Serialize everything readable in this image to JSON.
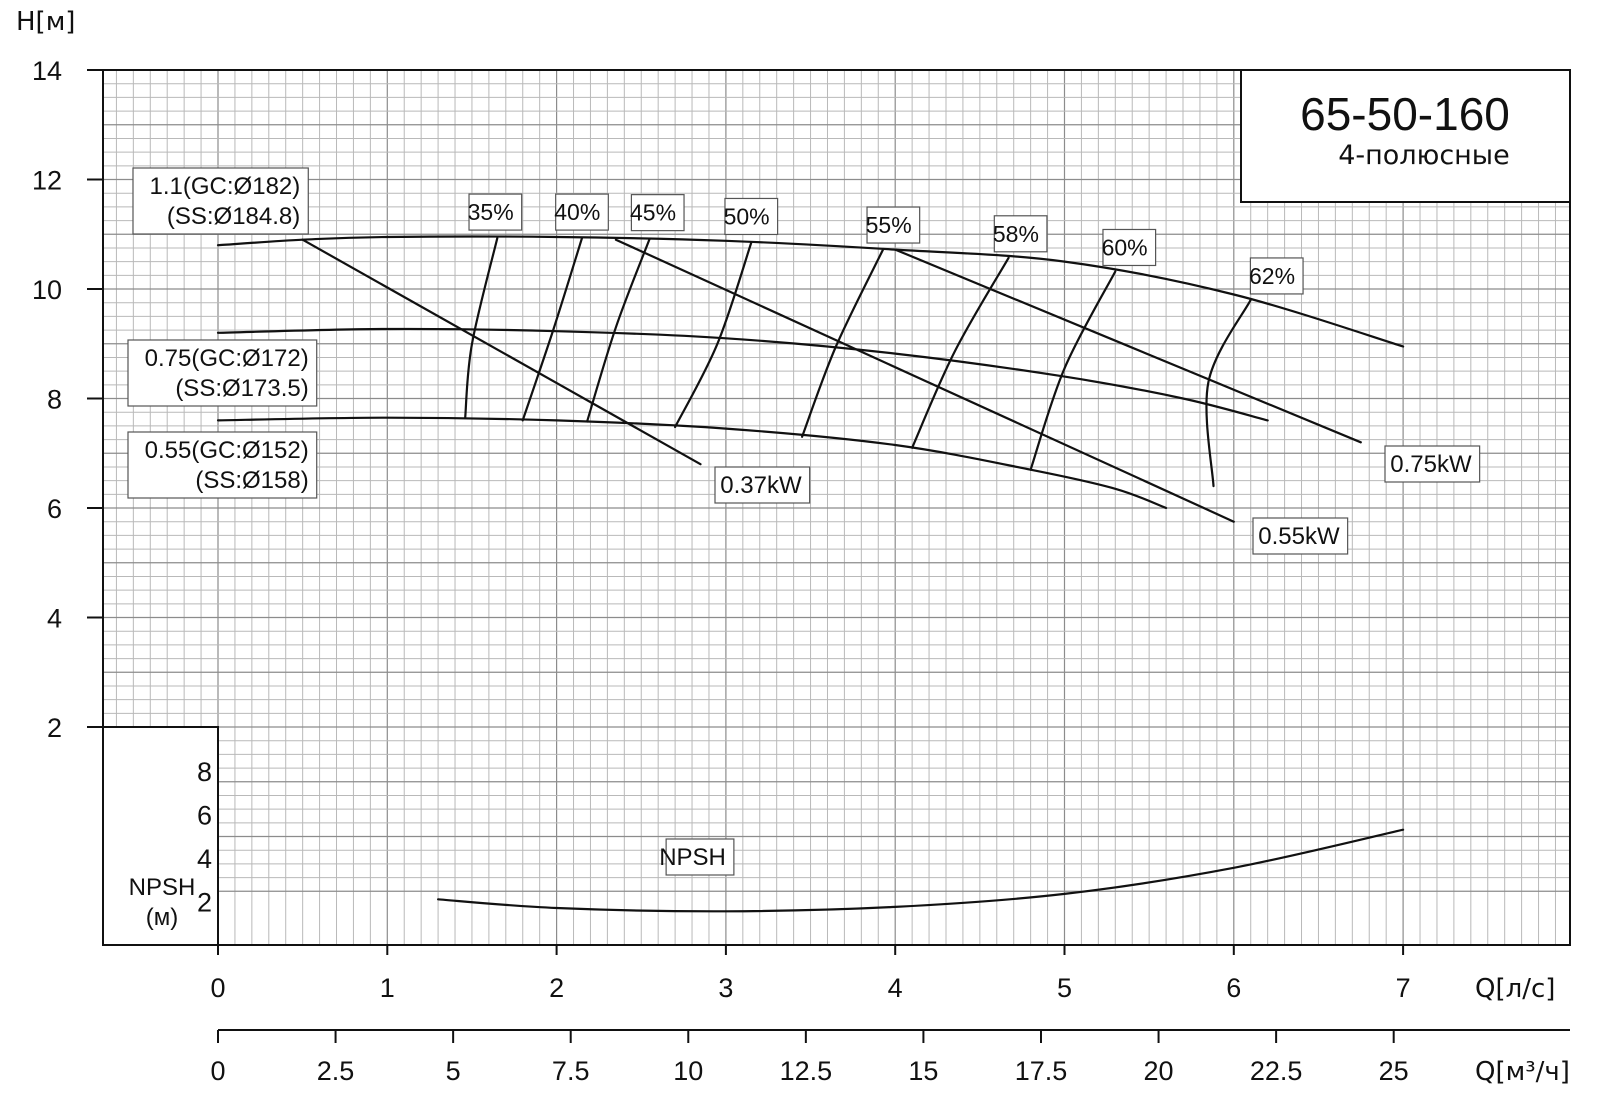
{
  "chart_data": {
    "type": "line",
    "title": "65-50-160",
    "subtitle": "4-полюсные",
    "ylabel": "H[м]",
    "xlabel": "Q[л/с]",
    "x2label": "Q[м³/ч]",
    "npsh_label": "NPSH",
    "npsh_axis_label": "NPSH\n(м)",
    "xlim": [
      0,
      8
    ],
    "ylim": [
      0,
      14
    ],
    "x_ticks": [
      "0",
      "1",
      "2",
      "3",
      "4",
      "5",
      "6",
      "7"
    ],
    "x2_ticks": [
      "0",
      "2.5",
      "5",
      "7.5",
      "10",
      "12.5",
      "15",
      "17.5",
      "20",
      "22.5",
      "25"
    ],
    "y_ticks": [
      "2",
      "4",
      "6",
      "8",
      "10",
      "12",
      "14"
    ],
    "npsh_ticks": [
      "2",
      "4",
      "6",
      "8"
    ],
    "grid": true,
    "head_curves": [
      {
        "label": "1.1(GC:Ø182)\n(SS:Ø184.8)",
        "points": [
          [
            0,
            10.8
          ],
          [
            0.5,
            10.9
          ],
          [
            1,
            10.95
          ],
          [
            2,
            10.95
          ],
          [
            3,
            10.88
          ],
          [
            4,
            10.72
          ],
          [
            5,
            10.5
          ],
          [
            6,
            9.9
          ],
          [
            7,
            8.95
          ]
        ]
      },
      {
        "label": "0.75(GC:Ø172)\n(SS:Ø173.5)",
        "points": [
          [
            0,
            9.2
          ],
          [
            1,
            9.27
          ],
          [
            2,
            9.23
          ],
          [
            3,
            9.1
          ],
          [
            4,
            8.82
          ],
          [
            5,
            8.4
          ],
          [
            5.7,
            8.0
          ],
          [
            6.2,
            7.6
          ]
        ]
      },
      {
        "label": "0.55(GC:Ø152)\n(SS:Ø158)",
        "points": [
          [
            0,
            7.6
          ],
          [
            1,
            7.65
          ],
          [
            2,
            7.6
          ],
          [
            3,
            7.45
          ],
          [
            4,
            7.15
          ],
          [
            4.8,
            6.7
          ],
          [
            5.3,
            6.35
          ],
          [
            5.6,
            6.0
          ]
        ]
      }
    ],
    "power_lines": [
      {
        "label": "0.37kW",
        "points": [
          [
            0.5,
            10.9
          ],
          [
            2.85,
            6.8
          ]
        ]
      },
      {
        "label": "0.55kW",
        "points": [
          [
            2.35,
            10.9
          ],
          [
            6.0,
            5.75
          ]
        ]
      },
      {
        "label": "0.75kW",
        "points": [
          [
            4.0,
            10.72
          ],
          [
            6.75,
            7.2
          ]
        ]
      }
    ],
    "efficiency_curves": [
      {
        "label": "35%",
        "points": [
          [
            1.65,
            10.93
          ],
          [
            1.5,
            9.0
          ],
          [
            1.46,
            7.65
          ]
        ]
      },
      {
        "label": "40%",
        "points": [
          [
            2.15,
            10.93
          ],
          [
            1.98,
            9.25
          ],
          [
            1.8,
            7.6
          ]
        ]
      },
      {
        "label": "45%",
        "points": [
          [
            2.55,
            10.92
          ],
          [
            2.35,
            9.3
          ],
          [
            2.18,
            7.58
          ]
        ]
      },
      {
        "label": "50%",
        "points": [
          [
            3.15,
            10.85
          ],
          [
            2.95,
            9.0
          ],
          [
            2.7,
            7.48
          ]
        ]
      },
      {
        "label": "55%",
        "points": [
          [
            3.93,
            10.73
          ],
          [
            3.65,
            8.95
          ],
          [
            3.45,
            7.3
          ]
        ]
      },
      {
        "label": "58%",
        "points": [
          [
            4.67,
            10.57
          ],
          [
            4.35,
            8.85
          ],
          [
            4.1,
            7.1
          ]
        ]
      },
      {
        "label": "60%",
        "points": [
          [
            5.3,
            10.32
          ],
          [
            5.0,
            8.55
          ],
          [
            4.8,
            6.7
          ]
        ]
      },
      {
        "label": "62%",
        "points": [
          [
            6.1,
            9.8
          ],
          [
            5.85,
            8.3
          ],
          [
            5.88,
            6.4
          ]
        ]
      }
    ],
    "npsh_curve": {
      "label": "NPSH",
      "points": [
        [
          1.3,
          2.1
        ],
        [
          2,
          1.7
        ],
        [
          3,
          1.55
        ],
        [
          4,
          1.75
        ],
        [
          5,
          2.35
        ],
        [
          6,
          3.55
        ],
        [
          7,
          5.3
        ]
      ]
    }
  }
}
